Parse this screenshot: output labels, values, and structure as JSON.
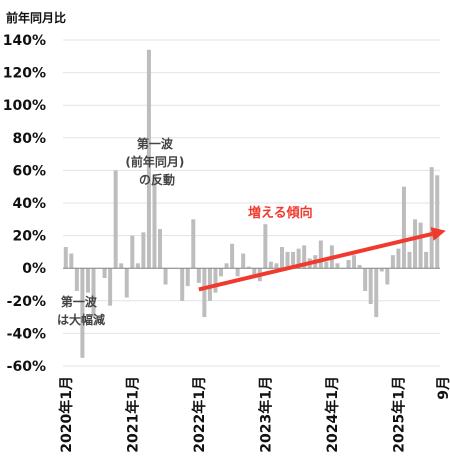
{
  "chart_data": {
    "type": "bar",
    "ylabel": "前年同月比",
    "ylim": [
      -60,
      140
    ],
    "yticks": [
      -60,
      -40,
      -20,
      0,
      20,
      40,
      60,
      80,
      100,
      120,
      140
    ],
    "ytick_labels": [
      "-60%",
      "-40%",
      "-20%",
      "0%",
      "20%",
      "40%",
      "60%",
      "80%",
      "100%",
      "120%",
      "140%"
    ],
    "grid": true,
    "bar_color": "#bdbdbd",
    "grid_color": "#e3e3e3",
    "accent_color": "#f03a2e",
    "x_start": "2020-01",
    "x_tick_labels": [
      {
        "month": "2020-01",
        "label": "2020年1月"
      },
      {
        "month": "2021-01",
        "label": "2021年1月"
      },
      {
        "month": "2022-01",
        "label": "2022年1月"
      },
      {
        "month": "2023-01",
        "label": "2023年1月"
      },
      {
        "month": "2024-01",
        "label": "2024年1月"
      },
      {
        "month": "2025-01",
        "label": "2025年1月"
      },
      {
        "month": "2025-09",
        "label": "9月"
      }
    ],
    "values": [
      13,
      9,
      -14,
      -55,
      -15,
      -30,
      0,
      -6,
      -23,
      60,
      3,
      -18,
      20,
      3,
      22,
      134,
      57,
      24,
      -10,
      0,
      0,
      -20,
      -11,
      30,
      -9,
      -30,
      -20,
      -15,
      -5,
      3,
      15,
      -5,
      9,
      1,
      -5,
      -8,
      27,
      4,
      3,
      13,
      10,
      10,
      12,
      14,
      6,
      8,
      17,
      4,
      14,
      3,
      0,
      5,
      8,
      2,
      -14,
      -22,
      -30,
      -2,
      -10,
      8,
      12,
      50,
      10,
      30,
      28,
      10,
      62,
      57
    ],
    "annotations": [
      {
        "lines": [
          "第一波",
          "(前年同月)",
          "の反動"
        ]
      },
      {
        "lines": [
          "第一波",
          "は大幅減"
        ]
      },
      {
        "lines": [
          "増える傾向"
        ]
      }
    ],
    "trend": {
      "from_month": "2022-01",
      "from_value": -13,
      "to_month": "2025-09",
      "to_value": 23
    }
  }
}
